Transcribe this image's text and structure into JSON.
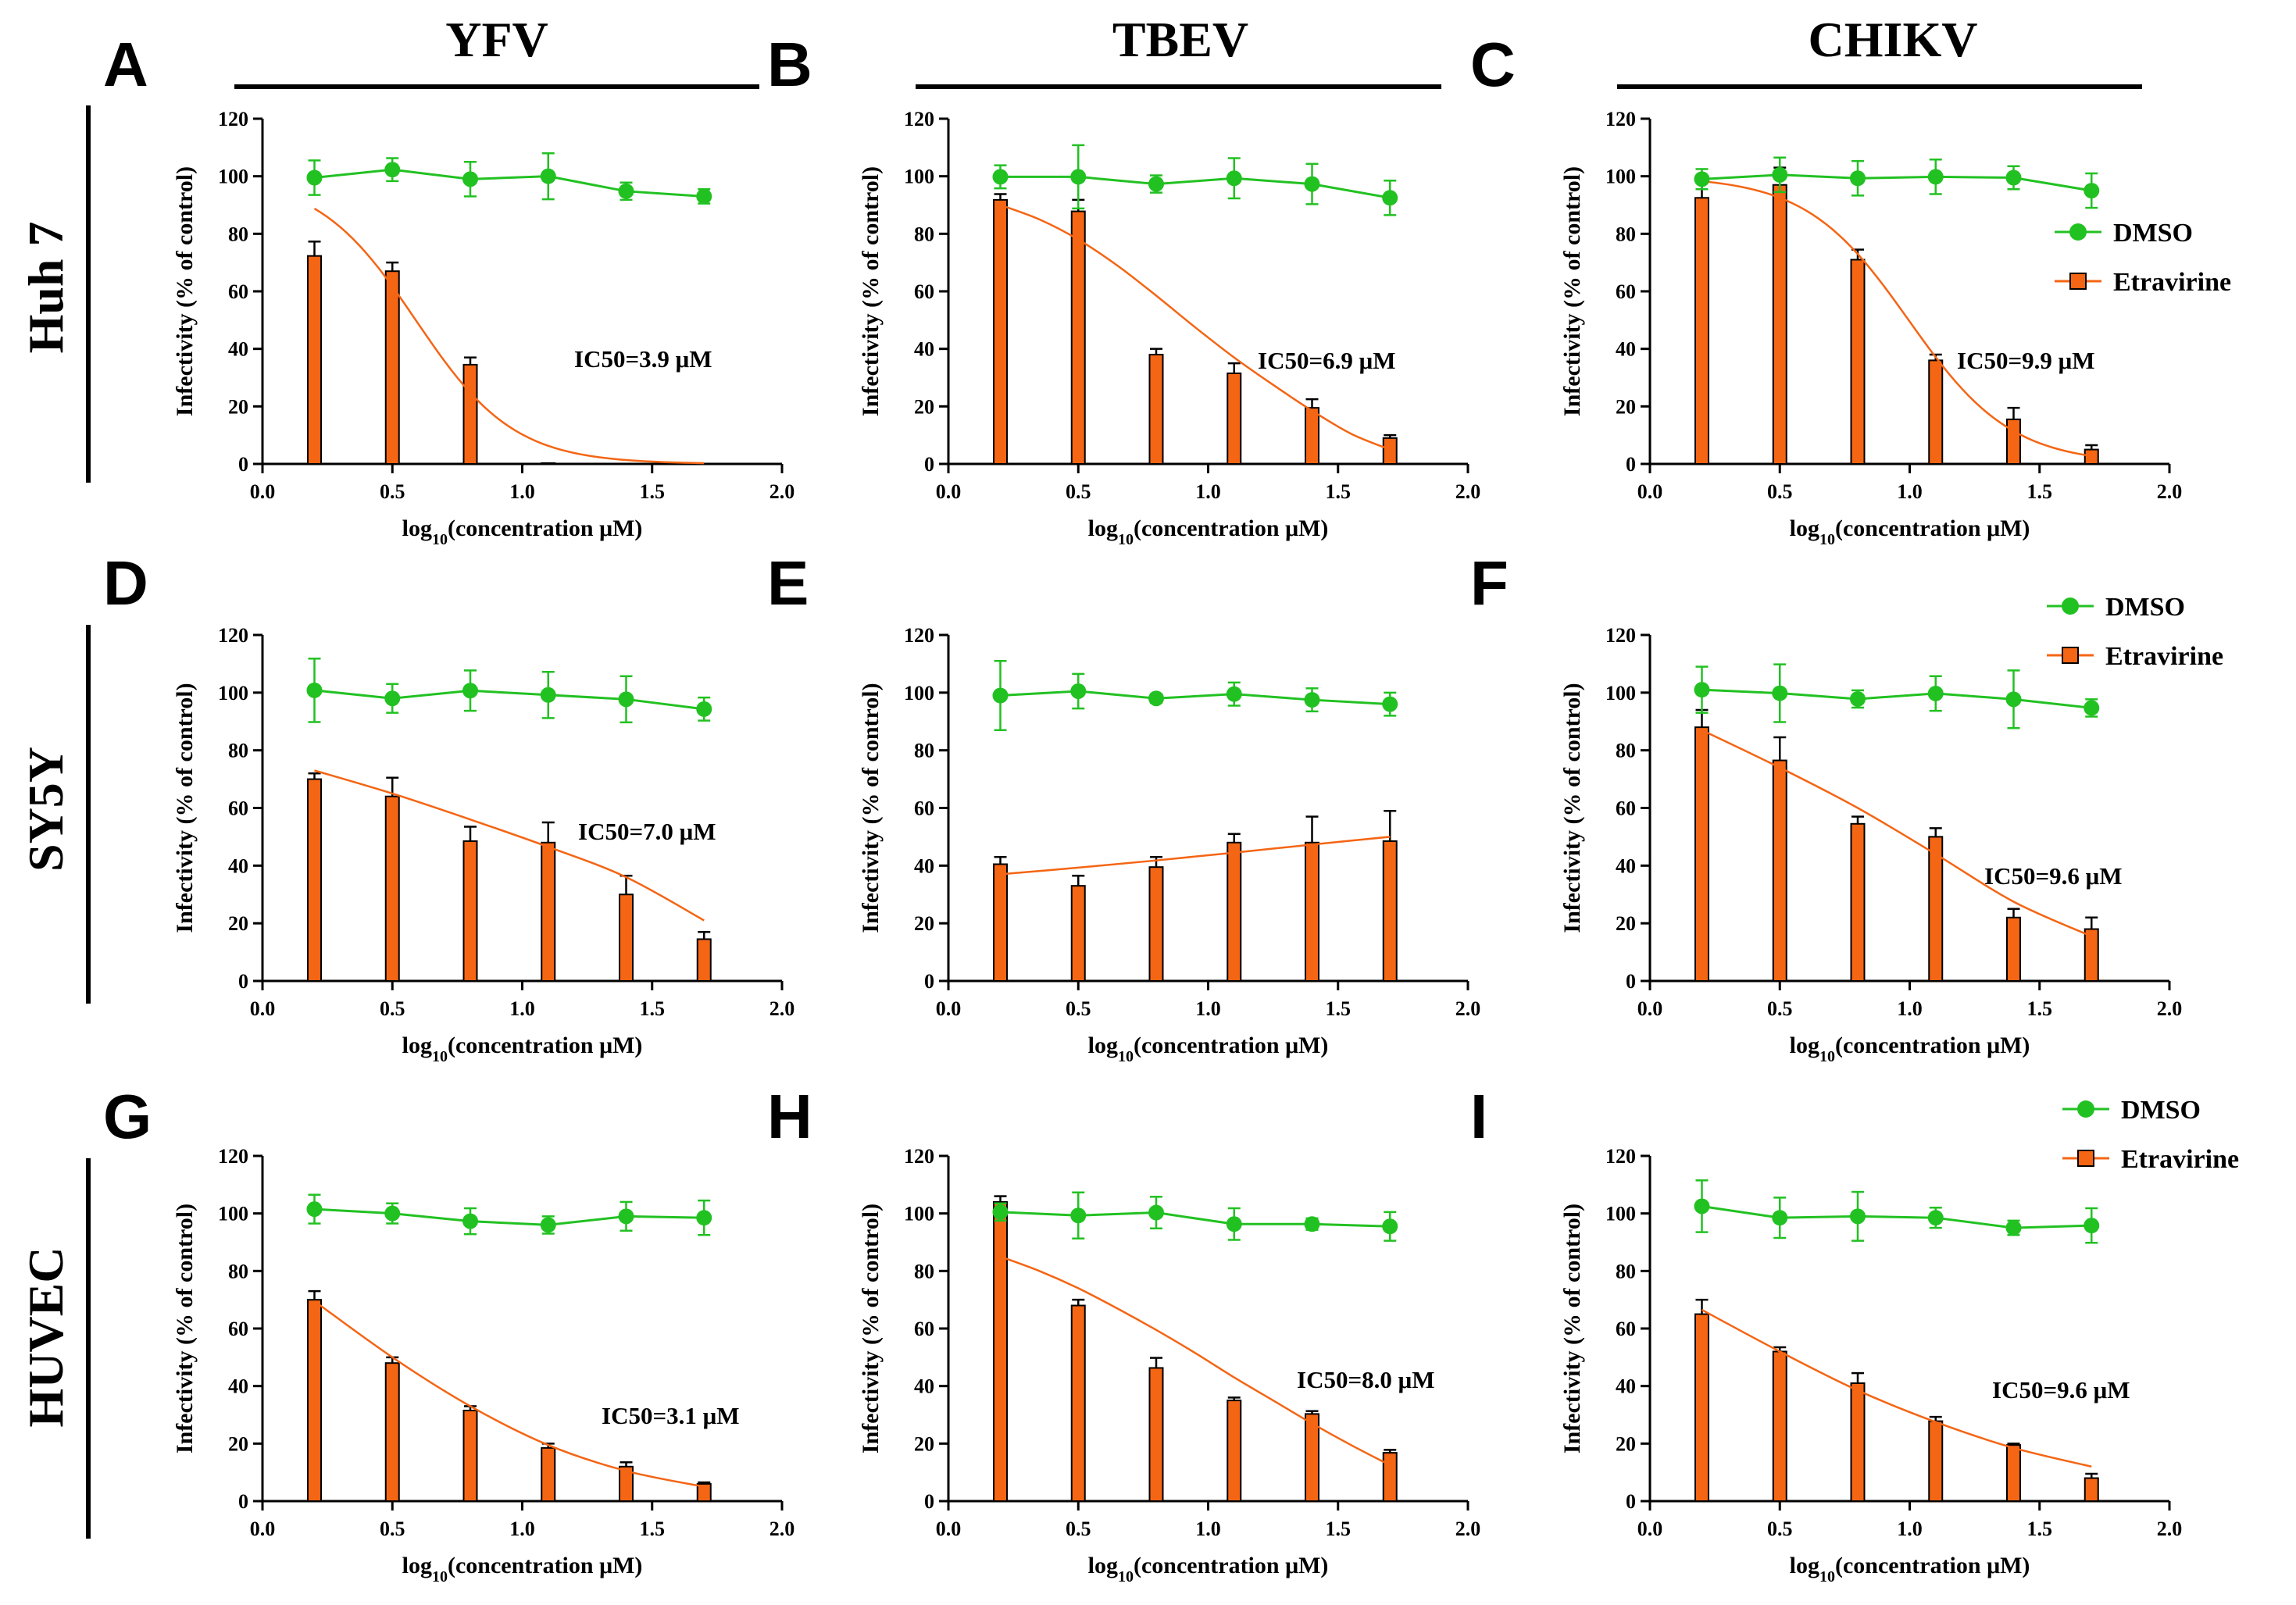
{
  "columns": [
    "YFV",
    "TBEV",
    "CHIKV"
  ],
  "rows": [
    "Huh 7",
    "SY5Y",
    "HUVEC"
  ],
  "colors": {
    "dmso": "#22c122",
    "etravirine": "#f46514",
    "axis": "#000000"
  },
  "chart_data": [
    {
      "type": "bar",
      "panel": "A",
      "virus": "YFV",
      "cell_line": "Huh 7",
      "x": [
        0.2,
        0.5,
        0.8,
        1.1,
        1.4,
        1.7
      ],
      "xlabel": "log10(concentration μM)",
      "ylabel": "Infectivity (% of  control)",
      "xlim": [
        0,
        2
      ],
      "ylim": [
        0,
        120
      ],
      "xticks": [
        "0.0",
        "0.5",
        "1.0",
        "1.5",
        "2.0"
      ],
      "yticks": [
        "0",
        "20",
        "40",
        "60",
        "80",
        "100",
        "120"
      ],
      "annotation": "IC50=3.9 μM",
      "legend": null,
      "series": [
        {
          "name": "DMSO",
          "kind": "line-markers",
          "values": [
            99.5,
            102.3,
            99.0,
            100.0,
            94.8,
            93.0
          ],
          "errors": [
            6,
            4,
            6,
            8,
            3,
            2.5
          ]
        },
        {
          "name": "Etravirine",
          "kind": "bars",
          "values": [
            72.3,
            67.0,
            34.5,
            0.3,
            0.0,
            0.0
          ],
          "errors": [
            5,
            3,
            2.5,
            0,
            0,
            0
          ],
          "fit_log_ic50": 0.59,
          "fit_hill": 2.3,
          "fit_top": 100
        }
      ]
    },
    {
      "type": "bar",
      "panel": "B",
      "virus": "TBEV",
      "cell_line": "Huh 7",
      "x": [
        0.2,
        0.5,
        0.8,
        1.1,
        1.4,
        1.7
      ],
      "xlabel": "log10(concentration μM)",
      "ylabel": "Infectivity (% of  control)",
      "xlim": [
        0,
        2
      ],
      "ylim": [
        0,
        120
      ],
      "xticks": [
        "0.0",
        "0.5",
        "1.0",
        "1.5",
        "2.0"
      ],
      "yticks": [
        "0",
        "20",
        "40",
        "60",
        "80",
        "100",
        "120"
      ],
      "annotation": "IC50=6.9 μM",
      "legend": null,
      "series": [
        {
          "name": "DMSO",
          "kind": "line-markers",
          "values": [
            99.8,
            99.8,
            97.3,
            99.3,
            97.3,
            92.5
          ],
          "errors": [
            4,
            11,
            3,
            7,
            7,
            6
          ]
        },
        {
          "name": "Etravirine",
          "kind": "bars",
          "values": [
            91.8,
            87.8,
            38.0,
            31.5,
            19.5,
            9.0
          ],
          "errors": [
            2,
            4,
            2,
            3.5,
            3,
            1
          ]
        },
        {
          "name": "Etravirine fit",
          "kind": "curve",
          "x": [
            0.2,
            0.35,
            0.5,
            0.65,
            0.8,
            0.95,
            1.1,
            1.25,
            1.4,
            1.55,
            1.7
          ],
          "values": [
            90,
            85,
            78,
            69,
            58.5,
            47.5,
            37,
            27.5,
            18.5,
            10.5,
            5
          ]
        }
      ]
    },
    {
      "type": "bar",
      "panel": "C",
      "virus": "CHIKV",
      "cell_line": "Huh 7",
      "x": [
        0.2,
        0.5,
        0.8,
        1.1,
        1.4,
        1.7
      ],
      "xlabel": "log10(concentration μM)",
      "ylabel": "Infectivity (% of  control)",
      "xlim": [
        0,
        2
      ],
      "ylim": [
        0,
        120
      ],
      "xticks": [
        "0.0",
        "0.5",
        "1.0",
        "1.5",
        "2.0"
      ],
      "yticks": [
        "0",
        "20",
        "40",
        "60",
        "80",
        "100",
        "120"
      ],
      "annotation": "IC50=9.9 μM",
      "legend": [
        "DMSO",
        "Etravirine"
      ],
      "series": [
        {
          "name": "DMSO",
          "kind": "line-markers",
          "values": [
            99.0,
            100.5,
            99.3,
            99.8,
            99.5,
            95.0
          ],
          "errors": [
            3.5,
            6,
            6,
            6,
            4,
            6
          ]
        },
        {
          "name": "Etravirine",
          "kind": "bars",
          "values": [
            92.5,
            97.0,
            71.0,
            36.0,
            15.5,
            5.0
          ],
          "errors": [
            7,
            6,
            3.5,
            2,
            4,
            1.5
          ],
          "fit_log_ic50": 0.996,
          "fit_hill": 2.2,
          "fit_top": 100
        }
      ]
    },
    {
      "type": "bar",
      "panel": "D",
      "virus": "YFV",
      "cell_line": "SY5Y",
      "x": [
        0.2,
        0.5,
        0.8,
        1.1,
        1.4,
        1.7
      ],
      "xlabel": "log10(concentration μM)",
      "ylabel": "Infectivity (% of  control)",
      "xlim": [
        0,
        2
      ],
      "ylim": [
        0,
        120
      ],
      "xticks": [
        "0.0",
        "0.5",
        "1.0",
        "1.5",
        "2.0"
      ],
      "yticks": [
        "0",
        "20",
        "40",
        "60",
        "80",
        "100",
        "120"
      ],
      "annotation": "IC50=7.0 μM",
      "legend": null,
      "series": [
        {
          "name": "DMSO",
          "kind": "line-markers",
          "values": [
            100.8,
            98.0,
            100.7,
            99.2,
            97.7,
            94.3
          ],
          "errors": [
            11,
            5,
            7,
            8,
            8,
            4
          ]
        },
        {
          "name": "Etravirine",
          "kind": "bars",
          "values": [
            70.0,
            64.0,
            48.5,
            48.0,
            30.0,
            14.5
          ],
          "errors": [
            2,
            6.5,
            5,
            7,
            6.5,
            2.5
          ]
        },
        {
          "name": "Etravirine fit",
          "kind": "curve",
          "x": [
            0.2,
            0.5,
            0.8,
            1.1,
            1.4,
            1.7
          ],
          "values": [
            73,
            65,
            56,
            46.5,
            36,
            21
          ]
        }
      ]
    },
    {
      "type": "bar",
      "panel": "E",
      "virus": "TBEV",
      "cell_line": "SY5Y",
      "x": [
        0.2,
        0.5,
        0.8,
        1.1,
        1.4,
        1.7
      ],
      "xlabel": "log10(concentration μM)",
      "ylabel": "Infectivity (% of  control)",
      "xlim": [
        0,
        2
      ],
      "ylim": [
        0,
        120
      ],
      "xticks": [
        "0.0",
        "0.5",
        "1.0",
        "1.5",
        "2.0"
      ],
      "yticks": [
        "0",
        "20",
        "40",
        "60",
        "80",
        "100",
        "120"
      ],
      "annotation": null,
      "legend": null,
      "series": [
        {
          "name": "DMSO",
          "kind": "line-markers",
          "values": [
            99.0,
            100.5,
            98.0,
            99.5,
            97.5,
            96.0
          ],
          "errors": [
            12,
            6,
            1.5,
            4,
            4,
            4
          ]
        },
        {
          "name": "Etravirine",
          "kind": "bars",
          "values": [
            40.5,
            33.0,
            39.5,
            48.0,
            48.0,
            48.5
          ],
          "errors": [
            2.5,
            3.5,
            3.5,
            3,
            9,
            10.5
          ]
        },
        {
          "name": "Etravirine fit",
          "kind": "curve",
          "x": [
            0.2,
            0.5,
            0.8,
            1.1,
            1.4,
            1.7
          ],
          "values": [
            37,
            39.3,
            41.8,
            44.5,
            47.3,
            50
          ]
        }
      ]
    },
    {
      "type": "bar",
      "panel": "F",
      "virus": "CHIKV",
      "cell_line": "SY5Y",
      "x": [
        0.2,
        0.5,
        0.8,
        1.1,
        1.4,
        1.7
      ],
      "xlabel": "log10(concentration μM)",
      "ylabel": "Infectivity (% of  control)",
      "xlim": [
        0,
        2
      ],
      "ylim": [
        0,
        120
      ],
      "xticks": [
        "0.0",
        "0.5",
        "1.0",
        "1.5",
        "2.0"
      ],
      "yticks": [
        "0",
        "20",
        "40",
        "60",
        "80",
        "100",
        "120"
      ],
      "annotation": "IC50=9.6 μM",
      "legend": [
        "DMSO",
        "Etravirine"
      ],
      "series": [
        {
          "name": "DMSO",
          "kind": "line-markers",
          "values": [
            101.0,
            99.8,
            97.8,
            99.7,
            97.7,
            94.7
          ],
          "errors": [
            8,
            10,
            3,
            6,
            10,
            3
          ]
        },
        {
          "name": "Etravirine",
          "kind": "bars",
          "values": [
            88.0,
            76.5,
            54.5,
            50.0,
            22.0,
            18.0
          ],
          "errors": [
            6,
            8,
            2.5,
            3,
            3,
            4
          ]
        },
        {
          "name": "Etravirine fit",
          "kind": "curve",
          "x": [
            0.2,
            0.5,
            0.8,
            1.1,
            1.4,
            1.7
          ],
          "values": [
            87,
            74,
            60,
            44,
            27.5,
            15.5
          ]
        }
      ]
    },
    {
      "type": "bar",
      "panel": "G",
      "virus": "YFV",
      "cell_line": "HUVEC",
      "x": [
        0.2,
        0.5,
        0.8,
        1.1,
        1.4,
        1.7
      ],
      "xlabel": "log10(concentration μM)",
      "ylabel": "Infectivity (% of  control)",
      "xlim": [
        0,
        2
      ],
      "ylim": [
        0,
        120
      ],
      "xticks": [
        "0.0",
        "0.5",
        "1.0",
        "1.5",
        "2.0"
      ],
      "yticks": [
        "0",
        "20",
        "40",
        "60",
        "80",
        "100",
        "120"
      ],
      "annotation": "IC50=3.1 μM",
      "legend": null,
      "series": [
        {
          "name": "DMSO",
          "kind": "line-markers",
          "values": [
            101.5,
            100.0,
            97.3,
            96.0,
            99.0,
            98.5
          ],
          "errors": [
            5,
            3.5,
            4.5,
            3,
            5,
            6
          ]
        },
        {
          "name": "Etravirine",
          "kind": "bars",
          "values": [
            70.0,
            48.0,
            31.5,
            18.5,
            12.0,
            6.0
          ],
          "errors": [
            3,
            2,
            1.5,
            1.5,
            1.5,
            0.5
          ]
        },
        {
          "name": "Etravirine fit",
          "kind": "curve",
          "x": [
            0.2,
            0.5,
            0.8,
            1.1,
            1.4,
            1.7
          ],
          "values": [
            69.5,
            50,
            33,
            19.5,
            10.5,
            5
          ]
        }
      ]
    },
    {
      "type": "bar",
      "panel": "H",
      "virus": "TBEV",
      "cell_line": "HUVEC",
      "x": [
        0.2,
        0.5,
        0.8,
        1.1,
        1.4,
        1.7
      ],
      "xlabel": "log10(concentration μM)",
      "ylabel": "Infectivity (% of  control)",
      "xlim": [
        0,
        2
      ],
      "ylim": [
        0,
        120
      ],
      "xticks": [
        "0.0",
        "0.5",
        "1.0",
        "1.5",
        "2.0"
      ],
      "yticks": [
        "0",
        "20",
        "40",
        "60",
        "80",
        "100",
        "120"
      ],
      "annotation": "IC50=8.0 μM",
      "legend": null,
      "series": [
        {
          "name": "DMSO",
          "kind": "line-markers",
          "values": [
            100.5,
            99.3,
            100.3,
            96.3,
            96.3,
            95.5
          ],
          "errors": [
            3,
            8,
            5.5,
            5.5,
            2,
            5
          ]
        },
        {
          "name": "Etravirine",
          "kind": "bars",
          "values": [
            104.0,
            68.0,
            46.3,
            35.0,
            30.3,
            16.8
          ],
          "errors": [
            2,
            2,
            3.5,
            1,
            1,
            1
          ]
        },
        {
          "name": "Etravirine fit",
          "kind": "curve",
          "x": [
            0.2,
            0.35,
            0.5,
            0.65,
            0.8,
            0.95,
            1.1,
            1.25,
            1.4,
            1.55,
            1.7
          ],
          "values": [
            85,
            80,
            74,
            67,
            59.5,
            51.5,
            43,
            35,
            27,
            19.5,
            12.5
          ]
        }
      ]
    },
    {
      "type": "bar",
      "panel": "I",
      "virus": "CHIKV",
      "cell_line": "HUVEC",
      "x": [
        0.2,
        0.5,
        0.8,
        1.1,
        1.4,
        1.7
      ],
      "xlabel": "log10(concentration μM)",
      "ylabel": "Infectivity (% of  control)",
      "xlim": [
        0,
        2
      ],
      "ylim": [
        0,
        120
      ],
      "xticks": [
        "0.0",
        "0.5",
        "1.0",
        "1.5",
        "2.0"
      ],
      "yticks": [
        "0",
        "20",
        "40",
        "60",
        "80",
        "100",
        "120"
      ],
      "annotation": "IC50=9.6 μM",
      "legend": [
        "DMSO",
        "Etravirine"
      ],
      "series": [
        {
          "name": "DMSO",
          "kind": "line-markers",
          "values": [
            102.5,
            98.5,
            99.0,
            98.5,
            95.0,
            95.8
          ],
          "errors": [
            9,
            7,
            8.5,
            3.5,
            2.5,
            6
          ]
        },
        {
          "name": "Etravirine",
          "kind": "bars",
          "values": [
            65.0,
            52.0,
            41.0,
            27.8,
            19.5,
            8.0
          ],
          "errors": [
            5,
            1.5,
            3.5,
            1.5,
            0.5,
            1.5
          ]
        },
        {
          "name": "Etravirine fit",
          "kind": "curve",
          "x": [
            0.2,
            0.5,
            0.8,
            1.1,
            1.4,
            1.7
          ],
          "values": [
            66.5,
            52,
            38.5,
            27.5,
            18.5,
            12
          ]
        }
      ]
    }
  ]
}
